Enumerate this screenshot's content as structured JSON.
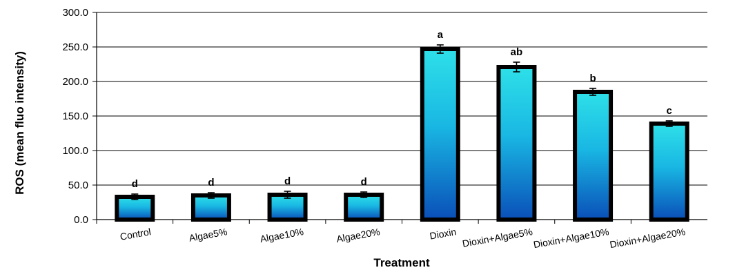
{
  "chart_data": {
    "type": "bar",
    "xlabel": "Treatment",
    "ylabel": "ROS (mean fluo intensity)",
    "ylim": [
      0,
      300
    ],
    "yticks": [
      "0.0",
      "50.0",
      "100.0",
      "150.0",
      "200.0",
      "250.0",
      "300.0"
    ],
    "categories": [
      "Control",
      "Algae5%",
      "Algae10%",
      "Algae20%",
      "Dioxin",
      "Dioxin+Algae5%",
      "Dioxin+Algae10%",
      "Dioxin+Algae20%"
    ],
    "values": [
      33,
      35,
      36,
      36,
      247,
      221,
      185,
      139
    ],
    "errors": [
      4,
      4,
      5,
      4,
      6,
      7,
      5,
      4
    ],
    "significance": [
      "d",
      "d",
      "d",
      "d",
      "a",
      "ab",
      "b",
      "c"
    ],
    "grid": true,
    "legend": "none",
    "colors": {
      "bar_top": "#2ee0e8",
      "bar_mid": "#19b7e3",
      "bar_bottom": "#0a4fb8",
      "bar_outline": "#000000",
      "grid": "#000000"
    }
  }
}
